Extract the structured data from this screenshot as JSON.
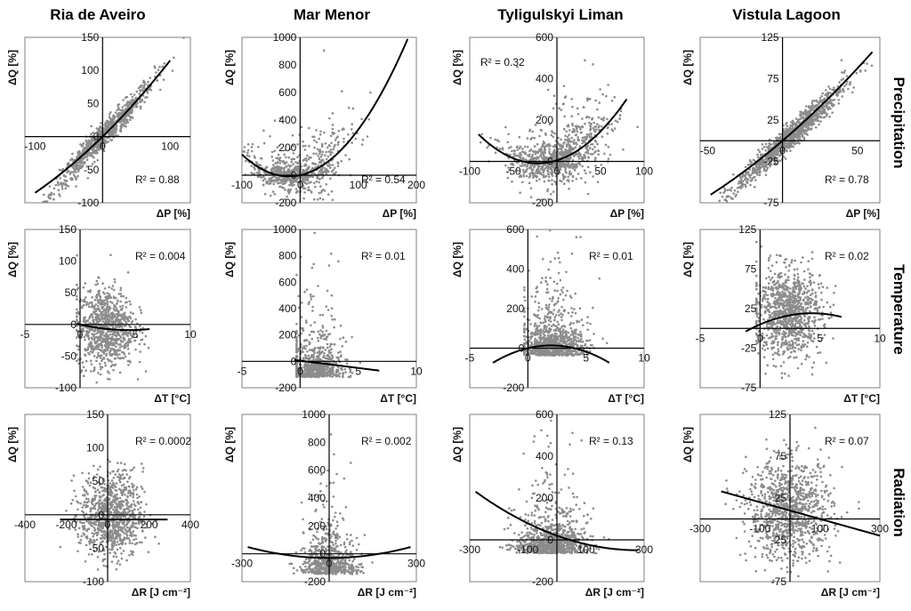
{
  "figure": {
    "columns": [
      "Ria de Aveiro",
      "Mar Menor",
      "Tyligulskyi Liman",
      "Vistula Lagoon"
    ],
    "rows": [
      "Precipitation",
      "Temperature",
      "Radiation"
    ]
  },
  "chart_data": [
    {
      "type": "scatter",
      "id": "r0c0",
      "site": "Ria de Aveiro",
      "driver": "Precipitation",
      "xlabel": "ΔP [%]",
      "ylabel": "ΔQ [%]",
      "xlim": [
        -115,
        130
      ],
      "ylim": [
        -100,
        150
      ],
      "xticks": [
        -100,
        0,
        100
      ],
      "yticks": [
        -100,
        -50,
        0,
        50,
        100,
        150
      ],
      "r2_label": "R² = 0.88",
      "r2_pos": "bottom-right",
      "cloud": {
        "shape": "linear",
        "cx": 0,
        "cy": 0,
        "sx": 38,
        "sy": 10,
        "slope": 1.0,
        "curve": 0.0015,
        "n": 800
      },
      "fit": {
        "coeffs": [
          0,
          1.0,
          0.0015
        ],
        "xrange": [
          -100,
          100
        ]
      }
    },
    {
      "type": "scatter",
      "id": "r0c1",
      "site": "Mar Menor",
      "driver": "Precipitation",
      "xlabel": "ΔP [%]",
      "ylabel": "ΔQ [%]",
      "xlim": [
        -100,
        200
      ],
      "ylim": [
        -200,
        1000
      ],
      "xticks": [
        -100,
        0,
        100,
        200
      ],
      "yticks": [
        -200,
        0,
        200,
        400,
        600,
        800,
        1000
      ],
      "r2_label": "R² = 0.54",
      "r2_pos": "bottom-right",
      "cloud": {
        "shape": "powerskew",
        "cx": -10,
        "cy": -100,
        "sx": 45,
        "sy": 60,
        "slope": 0.9,
        "curve": 0.024,
        "n": 700
      },
      "fit": {
        "coeffs": [
          0,
          0.9,
          0.024
        ],
        "xrange": [
          -100,
          185
        ]
      }
    },
    {
      "type": "scatter",
      "id": "r0c2",
      "site": "Tyligulskyi Liman",
      "driver": "Precipitation",
      "xlabel": "ΔP [%]",
      "ylabel": "ΔQ [%]",
      "xlim": [
        -100,
        100
      ],
      "ylim": [
        -200,
        600
      ],
      "xticks": [
        -100,
        -50,
        0,
        50,
        100
      ],
      "yticks": [
        -200,
        0,
        200,
        400,
        600
      ],
      "r2_label": "R² = 0.32",
      "r2_pos": "top-left",
      "cloud": {
        "shape": "powerskew",
        "cx": 0,
        "cy": -30,
        "sx": 28,
        "sy": 50,
        "slope": 1.3,
        "curve": 0.03,
        "n": 900
      },
      "fit": {
        "coeffs": [
          5,
          1.3,
          0.03
        ],
        "xrange": [
          -90,
          80
        ]
      }
    },
    {
      "type": "scatter",
      "id": "r0c3",
      "site": "Vistula Lagoon",
      "driver": "Precipitation",
      "xlabel": "ΔP [%]",
      "ylabel": "ΔQ [%]",
      "xlim": [
        -55,
        65
      ],
      "ylim": [
        -75,
        125
      ],
      "xticks": [
        -50,
        0,
        50
      ],
      "yticks": [
        -75,
        -25,
        25,
        75,
        125
      ],
      "r2_label": "R² = 0.78",
      "r2_pos": "bottom-right",
      "cloud": {
        "shape": "linear",
        "cx": 5,
        "cy": 5,
        "sx": 18,
        "sy": 8,
        "slope": 1.55,
        "curve": 0.004,
        "n": 1100
      },
      "fit": {
        "coeffs": [
          0,
          1.55,
          0.004
        ],
        "xrange": [
          -48,
          60
        ]
      }
    },
    {
      "type": "scatter",
      "id": "r1c0",
      "site": "Ria de Aveiro",
      "driver": "Temperature",
      "xlabel": "ΔT [°C]",
      "ylabel": "ΔQ [%]",
      "xlim": [
        -5,
        10
      ],
      "ylim": [
        -100,
        150
      ],
      "xticks": [
        -5,
        0,
        5,
        10
      ],
      "yticks": [
        -100,
        -50,
        0,
        50,
        100,
        150
      ],
      "r2_label": "R² = 0.004",
      "r2_pos": "top-right",
      "cloud": {
        "shape": "blob",
        "cx": 2.3,
        "cy": -5,
        "sx": 1.3,
        "sy": 32,
        "n": 900,
        "xmin": -0.3,
        "xmax": 6.2
      },
      "fit": {
        "coeffs": [
          0,
          -4.0,
          0.45
        ],
        "xrange": [
          -0.3,
          6.3
        ]
      }
    },
    {
      "type": "scatter",
      "id": "r1c1",
      "site": "Mar Menor",
      "driver": "Temperature",
      "xlabel": "ΔT [°C]",
      "ylabel": "ΔQ [%]",
      "xlim": [
        -5,
        10
      ],
      "ylim": [
        -200,
        1000
      ],
      "xticks": [
        -5,
        0,
        5,
        10
      ],
      "yticks": [
        -200,
        0,
        200,
        400,
        600,
        800,
        1000
      ],
      "r2_label": "R² = 0.01",
      "r2_pos": "top-right",
      "cloud": {
        "shape": "skewup",
        "cx": 1.2,
        "cy": -80,
        "sx": 1.2,
        "sy": 130,
        "n": 700,
        "xmin": -0.3,
        "xmax": 6.5
      },
      "fit": {
        "coeffs": [
          5,
          -11,
          0
        ],
        "xrange": [
          -0.5,
          6.8
        ]
      }
    },
    {
      "type": "scatter",
      "id": "r1c2",
      "site": "Tyligulskyi Liman",
      "driver": "Temperature",
      "xlabel": "ΔT [°C]",
      "ylabel": "ΔQ [%]",
      "xlim": [
        -5,
        10
      ],
      "ylim": [
        -200,
        600
      ],
      "xticks": [
        -5,
        0,
        5,
        10
      ],
      "yticks": [
        -200,
        0,
        200,
        400,
        600
      ],
      "r2_label": "R² = 0.01",
      "r2_pos": "top-right",
      "cloud": {
        "shape": "skewup",
        "cx": 2.2,
        "cy": -10,
        "sx": 1.4,
        "sy": 90,
        "n": 900,
        "xmin": -0.3,
        "xmax": 6.8
      },
      "fit": {
        "coeffs": [
          0,
          14,
          -3.5
        ],
        "xrange": [
          -3,
          7
        ]
      }
    },
    {
      "type": "scatter",
      "id": "r1c3",
      "site": "Vistula Lagoon",
      "driver": "Temperature",
      "xlabel": "ΔT [°C]",
      "ylabel": "ΔQ [%]",
      "xlim": [
        -5,
        10
      ],
      "ylim": [
        -75,
        125
      ],
      "xticks": [
        -5,
        0,
        5,
        10
      ],
      "yticks": [
        -75,
        -25,
        25,
        75,
        125
      ],
      "r2_label": "R² = 0.02",
      "r2_pos": "top-right",
      "cloud": {
        "shape": "blob",
        "cx": 2.3,
        "cy": 20,
        "sx": 1.4,
        "sy": 28,
        "n": 1000,
        "xmin": -0.3,
        "xmax": 6.3
      },
      "fit": {
        "coeffs": [
          5,
          6.5,
          -0.75
        ],
        "xrange": [
          -1.2,
          6.8
        ]
      }
    },
    {
      "type": "scatter",
      "id": "r2c0",
      "site": "Ria de Aveiro",
      "driver": "Radiation",
      "xlabel": "ΔR [J cm⁻²]",
      "ylabel": "ΔQ [%]",
      "xlim": [
        -400,
        400
      ],
      "ylim": [
        -100,
        150
      ],
      "xticks": [
        -400,
        -200,
        0,
        200,
        400
      ],
      "yticks": [
        -100,
        -50,
        0,
        50,
        100,
        150
      ],
      "r2_label": "R² = 0.0002",
      "r2_pos": "top-right",
      "cloud": {
        "shape": "blob",
        "cx": 20,
        "cy": 0,
        "sx": 75,
        "sy": 32,
        "n": 900,
        "xmin": -230,
        "xmax": 290
      },
      "fit": {
        "coeffs": [
          -7,
          0.0,
          0.0
        ],
        "xrange": [
          -230,
          290
        ]
      }
    },
    {
      "type": "scatter",
      "id": "r2c1",
      "site": "Mar Menor",
      "driver": "Radiation",
      "xlabel": "ΔR [J cm⁻²]",
      "ylabel": "ΔQ [%]",
      "xlim": [
        -300,
        300
      ],
      "ylim": [
        -200,
        1000
      ],
      "xticks": [
        -300,
        0,
        300
      ],
      "yticks": [
        -200,
        0,
        200,
        400,
        600,
        800,
        1000
      ],
      "r2_label": "R² = 0.002",
      "r2_pos": "top-right",
      "cloud": {
        "shape": "skewup",
        "cx": 0,
        "cy": -110,
        "sx": 45,
        "sy": 120,
        "n": 700,
        "xmin": -280,
        "xmax": 280
      },
      "fit": {
        "coeffs": [
          -30,
          0.0,
          0.001
        ],
        "xrange": [
          -280,
          280
        ]
      }
    },
    {
      "type": "scatter",
      "id": "r2c2",
      "site": "Tyligulskyi Liman",
      "driver": "Radiation",
      "xlabel": "ΔR [J cm⁻²]",
      "ylabel": "ΔQ [%]",
      "xlim": [
        -300,
        300
      ],
      "ylim": [
        -200,
        600
      ],
      "xticks": [
        -300,
        -100,
        100,
        300
      ],
      "yticks": [
        -200,
        0,
        200,
        400,
        600
      ],
      "r2_label": "R² = 0.13",
      "r2_pos": "top-right",
      "cloud": {
        "shape": "skewup",
        "cx": -20,
        "cy": -40,
        "sx": 60,
        "sy": 80,
        "n": 900,
        "xmin": -280,
        "xmax": 190
      },
      "fit": {
        "coeffs": [
          20,
          -0.5,
          0.0009
        ],
        "xrange": [
          -280,
          280
        ]
      }
    },
    {
      "type": "scatter",
      "id": "r2c3",
      "site": "Vistula Lagoon",
      "driver": "Radiation",
      "xlabel": "ΔR [J cm⁻²]",
      "ylabel": "ΔQ [%]",
      "xlim": [
        -300,
        300
      ],
      "ylim": [
        -75,
        125
      ],
      "xticks": [
        -300,
        -100,
        100,
        300
      ],
      "yticks": [
        -75,
        -25,
        25,
        75,
        125
      ],
      "r2_label": "R² = 0.07",
      "r2_pos": "top-right",
      "cloud": {
        "shape": "blob",
        "cx": 0,
        "cy": 10,
        "sx": 70,
        "sy": 30,
        "n": 1000,
        "xmin": -230,
        "xmax": 230
      },
      "fit": {
        "coeffs": [
          10,
          -0.1,
          0
        ],
        "xrange": [
          -230,
          300
        ]
      }
    }
  ]
}
